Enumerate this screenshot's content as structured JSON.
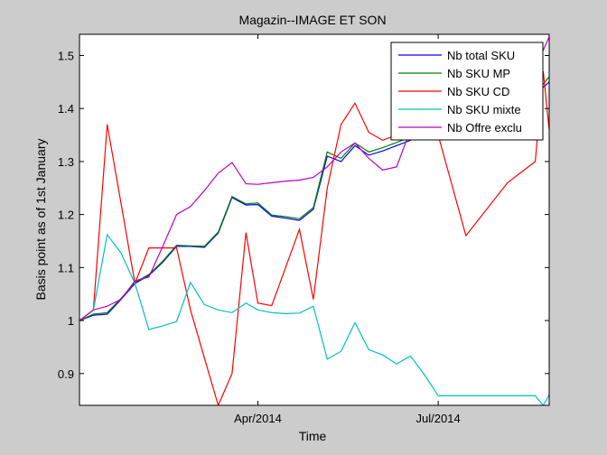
{
  "chart_data": {
    "type": "line",
    "title": "Magazin--IMAGE ET SON",
    "xlabel": "Time",
    "ylabel": "Basis point as of 1st January",
    "x_tick_labels": [
      "Apr/2014",
      "Jul/2014"
    ],
    "x": [
      "2014-01-01",
      "2014-01-08",
      "2014-01-15",
      "2014-01-22",
      "2014-01-29",
      "2014-02-05",
      "2014-02-12",
      "2014-02-19",
      "2014-02-26",
      "2014-03-05",
      "2014-03-12",
      "2014-03-19",
      "2014-03-26",
      "2014-04-01",
      "2014-04-08",
      "2014-04-15",
      "2014-04-22",
      "2014-04-29",
      "2014-05-06",
      "2014-05-13",
      "2014-05-20",
      "2014-05-27",
      "2014-06-03",
      "2014-06-10",
      "2014-06-17",
      "2014-06-24",
      "2014-07-01",
      "2014-07-15",
      "2014-08-05",
      "2014-08-19",
      "2014-08-23",
      "2014-08-26"
    ],
    "xlim": [
      "2014-01-01",
      "2014-08-26"
    ],
    "ylim": [
      0.84,
      1.54
    ],
    "y_ticks": [
      0.9,
      1.0,
      1.1,
      1.2,
      1.3,
      1.4,
      1.5
    ],
    "y_tick_labels": [
      "0.9",
      "1",
      "1.1",
      "1.2",
      "1.3",
      "1.4",
      "1.5"
    ],
    "grid": false,
    "legend_position": "top-right",
    "series": [
      {
        "name": "Nb total SKU",
        "color": "#0000ff",
        "values": [
          1.0,
          1.01,
          1.012,
          1.04,
          1.07,
          1.085,
          1.11,
          1.14,
          1.14,
          1.138,
          1.165,
          1.232,
          1.218,
          1.219,
          1.197,
          1.193,
          1.189,
          1.21,
          1.31,
          1.3,
          1.33,
          1.312,
          1.32,
          1.33,
          1.34,
          1.36,
          1.38,
          1.4,
          1.42,
          1.43,
          1.44,
          1.45
        ]
      },
      {
        "name": "Nb SKU MP",
        "color": "#008000",
        "values": [
          1.0,
          1.012,
          1.015,
          1.042,
          1.072,
          1.087,
          1.112,
          1.142,
          1.141,
          1.14,
          1.167,
          1.234,
          1.22,
          1.222,
          1.199,
          1.196,
          1.192,
          1.213,
          1.318,
          1.306,
          1.335,
          1.318,
          1.326,
          1.336,
          1.346,
          1.366,
          1.386,
          1.406,
          1.426,
          1.436,
          1.446,
          1.46
        ]
      },
      {
        "name": "Nb SKU CD",
        "color": "#ff0000",
        "values": [
          1.0,
          1.02,
          1.37,
          1.22,
          1.07,
          1.137,
          1.137,
          1.137,
          1.02,
          0.93,
          0.84,
          0.9,
          1.166,
          1.033,
          1.028,
          1.1,
          1.172,
          1.04,
          1.25,
          1.37,
          1.41,
          1.355,
          1.34,
          1.35,
          1.357,
          1.342,
          1.35,
          1.16,
          1.26,
          1.3,
          1.47,
          1.36
        ]
      },
      {
        "name": "Nb SKU mixte",
        "color": "#00bfbf",
        "values": [
          1.0,
          1.02,
          1.162,
          1.127,
          1.07,
          0.983,
          0.99,
          0.998,
          1.072,
          1.03,
          1.02,
          1.015,
          1.033,
          1.02,
          1.015,
          1.013,
          1.014,
          1.027,
          0.927,
          0.942,
          0.996,
          0.945,
          0.935,
          0.918,
          0.933,
          0.898,
          0.858,
          0.858,
          0.858,
          0.858,
          0.84,
          0.86
        ]
      },
      {
        "name": "Nb Offre exclu",
        "color": "#bf00bf",
        "values": [
          1.0,
          1.02,
          1.027,
          1.04,
          1.075,
          1.082,
          1.14,
          1.2,
          1.215,
          1.245,
          1.278,
          1.298,
          1.258,
          1.257,
          1.26,
          1.263,
          1.265,
          1.27,
          1.29,
          1.318,
          1.335,
          1.306,
          1.284,
          1.29,
          1.36,
          1.4,
          1.42,
          1.45,
          1.47,
          1.49,
          1.51,
          1.535
        ]
      }
    ]
  }
}
